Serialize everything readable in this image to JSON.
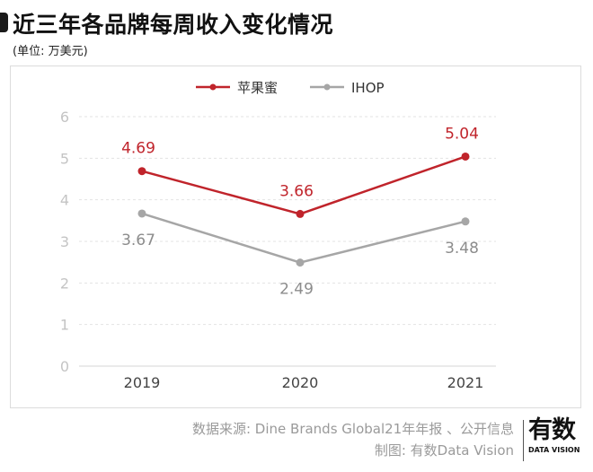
{
  "header": {
    "title": "近三年各品牌每周收入变化情况",
    "subtitle": "(单位: 万美元)"
  },
  "footer": {
    "source": "数据来源: Dine Brands Global21年年报 、公开信息",
    "credit": "制图: 有数Data Vision",
    "logo_cn": "有数",
    "logo_en": "DATA VISION"
  },
  "colors": {
    "applebees": "#c0242b",
    "ihop": "#a6a6a6",
    "grid": "#e3e3e3",
    "axis": "#d4d4d4"
  },
  "chart_data": {
    "type": "line",
    "title": "近三年各品牌每周收入变化情况",
    "subtitle": "(单位: 万美元)",
    "xlabel": "",
    "ylabel": "",
    "categories": [
      "2019",
      "2020",
      "2021"
    ],
    "y_ticks": [
      "0",
      "1",
      "2",
      "3",
      "4",
      "5",
      "6"
    ],
    "ylim": [
      0,
      6
    ],
    "grid": true,
    "legend_position": "top-center",
    "series": [
      {
        "name": "苹果蜜",
        "color": "#c0242b",
        "values": [
          4.69,
          3.66,
          5.04
        ],
        "labels": [
          "4.69",
          "3.66",
          "5.04"
        ],
        "label_position": "above"
      },
      {
        "name": "IHOP",
        "color": "#a6a6a6",
        "values": [
          3.67,
          2.49,
          3.48
        ],
        "labels": [
          "3.67",
          "2.49",
          "3.48"
        ],
        "label_position": "below"
      }
    ]
  }
}
